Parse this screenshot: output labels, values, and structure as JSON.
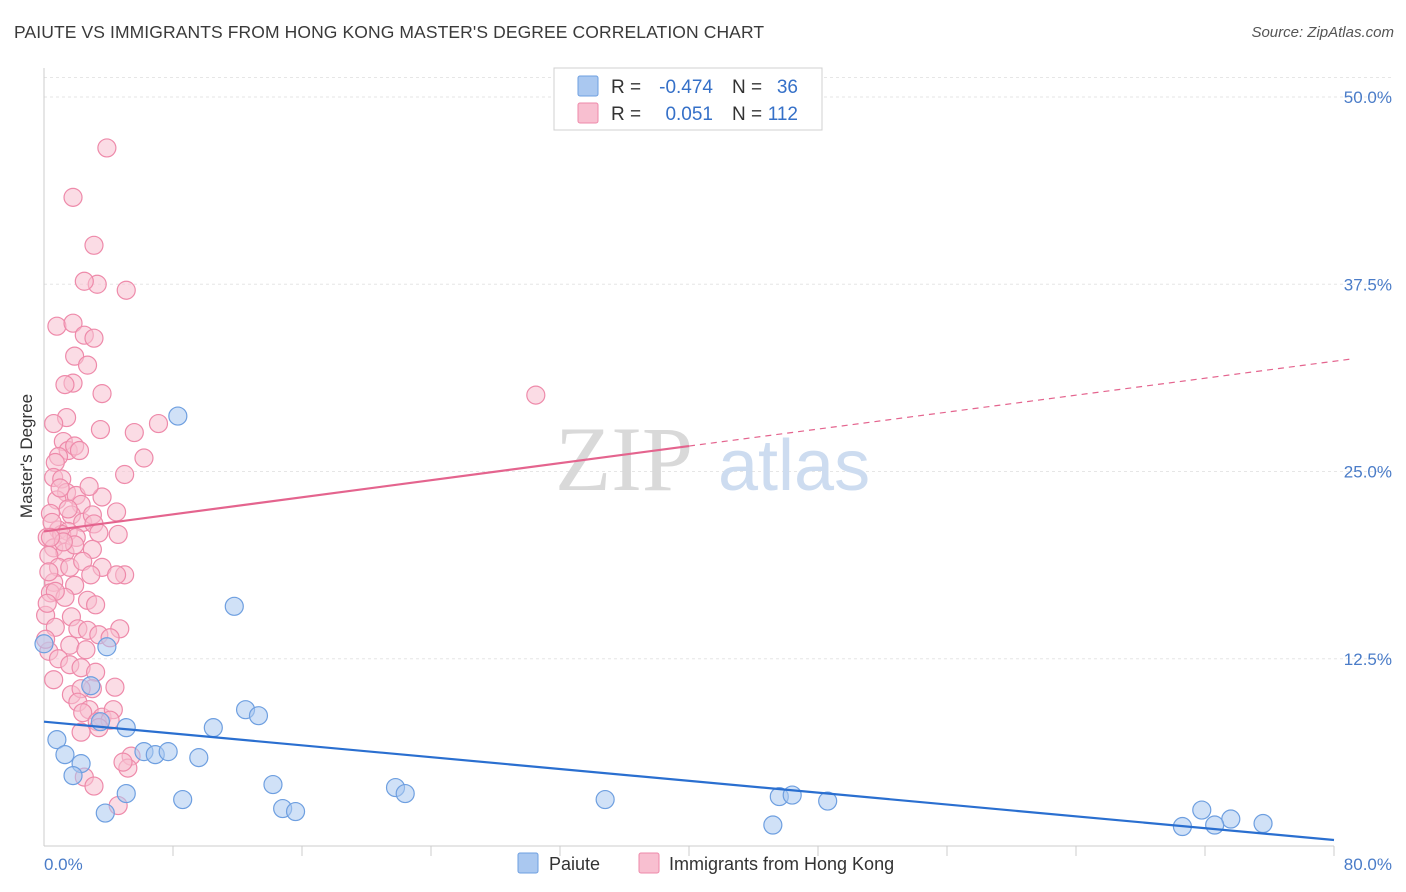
{
  "title": "PAIUTE VS IMMIGRANTS FROM HONG KONG MASTER'S DEGREE CORRELATION CHART",
  "source": "Source: ZipAtlas.com",
  "watermark": {
    "zip": "ZIP",
    "atlas": "atlas"
  },
  "colors": {
    "paiute_fill": "#aac8f0",
    "paiute_stroke": "#6e9fe0",
    "paiute_line": "#2a6fd0",
    "hk_fill": "#f8bfd0",
    "hk_stroke": "#ee8aaa",
    "hk_line": "#e4648e",
    "grid": "#e6e6e6",
    "axis": "#cccccc",
    "tick_text": "#4a7cc8"
  },
  "legend": {
    "rows": [
      {
        "r_label": "R =",
        "r_value": "-0.474",
        "n_label": "N =",
        "n_value": "36"
      },
      {
        "r_label": "R =",
        "r_value": "0.051",
        "n_label": "N =",
        "n_value": "112"
      }
    ]
  },
  "chart_data": {
    "type": "scatter",
    "title": "PAIUTE VS IMMIGRANTS FROM HONG KONG MASTER'S DEGREE CORRELATION CHART",
    "xlabel": "",
    "ylabel": "Master's Degree",
    "xlim": [
      0,
      80
    ],
    "ylim": [
      0,
      52
    ],
    "x_tick_labels": [
      "0.0%",
      "80.0%"
    ],
    "y_ticks": [
      12.5,
      25.0,
      37.5,
      50.0
    ],
    "y_tick_labels": [
      "12.5%",
      "25.0%",
      "37.5%",
      "50.0%"
    ],
    "grid": true,
    "legend_position": "bottom-center",
    "series": [
      {
        "name": "Paiute",
        "R": -0.474,
        "N": 36,
        "trend": {
          "x": [
            0,
            80
          ],
          "y": [
            8.3,
            0.4
          ]
        },
        "points": [
          [
            8.3,
            28.7
          ],
          [
            11.8,
            16.0
          ],
          [
            3.9,
            13.3
          ],
          [
            2.9,
            10.7
          ],
          [
            3.5,
            8.3
          ],
          [
            5.1,
            7.9
          ],
          [
            10.5,
            7.9
          ],
          [
            12.5,
            9.1
          ],
          [
            13.3,
            8.7
          ],
          [
            0.8,
            7.1
          ],
          [
            1.3,
            6.1
          ],
          [
            2.3,
            5.5
          ],
          [
            6.2,
            6.3
          ],
          [
            6.9,
            6.1
          ],
          [
            7.7,
            6.3
          ],
          [
            9.6,
            5.9
          ],
          [
            1.8,
            4.7
          ],
          [
            5.1,
            3.5
          ],
          [
            8.6,
            3.1
          ],
          [
            14.2,
            4.1
          ],
          [
            21.8,
            3.9
          ],
          [
            22.4,
            3.5
          ],
          [
            14.8,
            2.5
          ],
          [
            15.6,
            2.3
          ],
          [
            3.8,
            2.2
          ],
          [
            34.8,
            3.1
          ],
          [
            45.6,
            3.3
          ],
          [
            46.4,
            3.4
          ],
          [
            48.6,
            3.0
          ],
          [
            45.2,
            1.4
          ],
          [
            71.8,
            2.4
          ],
          [
            73.6,
            1.8
          ],
          [
            70.6,
            1.3
          ],
          [
            72.6,
            1.4
          ],
          [
            75.6,
            1.5
          ],
          [
            0.0,
            13.5
          ]
        ]
      },
      {
        "name": "Immigrants from Hong Kong",
        "R": 0.051,
        "N": 112,
        "trend": {
          "x": [
            0,
            40
          ],
          "y": [
            21.0,
            26.7
          ]
        },
        "trend_dashed": {
          "x": [
            40,
            81
          ],
          "y": [
            26.7,
            32.5
          ]
        },
        "points": [
          [
            3.9,
            46.6
          ],
          [
            1.8,
            43.3
          ],
          [
            3.1,
            40.1
          ],
          [
            3.3,
            37.5
          ],
          [
            5.1,
            37.1
          ],
          [
            2.5,
            37.7
          ],
          [
            0.8,
            34.7
          ],
          [
            1.8,
            34.9
          ],
          [
            2.5,
            34.1
          ],
          [
            3.1,
            33.9
          ],
          [
            1.9,
            32.7
          ],
          [
            2.7,
            32.1
          ],
          [
            1.8,
            30.9
          ],
          [
            1.3,
            30.8
          ],
          [
            3.6,
            30.2
          ],
          [
            30.5,
            30.1
          ],
          [
            1.4,
            28.6
          ],
          [
            0.6,
            28.2
          ],
          [
            3.5,
            27.8
          ],
          [
            5.6,
            27.6
          ],
          [
            7.1,
            28.2
          ],
          [
            1.2,
            27.0
          ],
          [
            1.5,
            26.4
          ],
          [
            1.9,
            26.7
          ],
          [
            2.2,
            26.4
          ],
          [
            0.9,
            26.0
          ],
          [
            0.7,
            25.6
          ],
          [
            6.2,
            25.9
          ],
          [
            0.6,
            24.6
          ],
          [
            1.1,
            24.5
          ],
          [
            5.0,
            24.8
          ],
          [
            1.4,
            23.6
          ],
          [
            2.0,
            23.4
          ],
          [
            0.8,
            23.1
          ],
          [
            3.6,
            23.3
          ],
          [
            2.3,
            22.8
          ],
          [
            0.4,
            22.2
          ],
          [
            1.7,
            22.1
          ],
          [
            2.4,
            21.6
          ],
          [
            3.0,
            22.1
          ],
          [
            4.5,
            22.3
          ],
          [
            0.9,
            21.1
          ],
          [
            1.5,
            21.0
          ],
          [
            3.1,
            21.5
          ],
          [
            0.2,
            20.6
          ],
          [
            1.1,
            20.8
          ],
          [
            2.0,
            20.6
          ],
          [
            3.4,
            20.9
          ],
          [
            4.6,
            20.8
          ],
          [
            0.6,
            19.9
          ],
          [
            1.3,
            19.6
          ],
          [
            1.9,
            20.1
          ],
          [
            3.0,
            19.8
          ],
          [
            0.3,
            19.4
          ],
          [
            0.9,
            18.6
          ],
          [
            1.6,
            18.6
          ],
          [
            2.4,
            19.0
          ],
          [
            3.6,
            18.6
          ],
          [
            5.0,
            18.1
          ],
          [
            0.6,
            17.6
          ],
          [
            1.9,
            17.4
          ],
          [
            2.9,
            18.1
          ],
          [
            4.5,
            18.1
          ],
          [
            0.4,
            16.9
          ],
          [
            1.3,
            16.6
          ],
          [
            2.7,
            16.4
          ],
          [
            0.1,
            15.4
          ],
          [
            1.7,
            15.3
          ],
          [
            3.2,
            16.1
          ],
          [
            0.7,
            14.6
          ],
          [
            2.1,
            14.5
          ],
          [
            2.7,
            14.4
          ],
          [
            3.4,
            14.1
          ],
          [
            4.7,
            14.5
          ],
          [
            1.6,
            13.4
          ],
          [
            2.6,
            13.1
          ],
          [
            4.1,
            13.9
          ],
          [
            0.3,
            13.0
          ],
          [
            0.9,
            12.5
          ],
          [
            1.6,
            12.1
          ],
          [
            2.3,
            11.9
          ],
          [
            3.2,
            11.6
          ],
          [
            0.6,
            11.1
          ],
          [
            3.0,
            10.5
          ],
          [
            1.7,
            10.1
          ],
          [
            2.3,
            10.5
          ],
          [
            4.4,
            10.6
          ],
          [
            2.1,
            9.6
          ],
          [
            2.8,
            9.1
          ],
          [
            3.6,
            8.6
          ],
          [
            4.3,
            9.1
          ],
          [
            2.4,
            8.9
          ],
          [
            3.3,
            8.3
          ],
          [
            4.1,
            8.4
          ],
          [
            5.4,
            6.0
          ],
          [
            5.2,
            5.2
          ],
          [
            2.3,
            7.6
          ],
          [
            3.4,
            7.9
          ],
          [
            4.9,
            5.6
          ],
          [
            2.5,
            4.6
          ],
          [
            3.1,
            4.0
          ],
          [
            4.6,
            2.7
          ],
          [
            0.5,
            21.6
          ],
          [
            1.0,
            23.9
          ],
          [
            2.8,
            24.0
          ],
          [
            1.5,
            22.5
          ],
          [
            0.3,
            18.3
          ],
          [
            0.7,
            17.0
          ],
          [
            1.2,
            20.3
          ],
          [
            0.2,
            16.2
          ],
          [
            0.4,
            20.6
          ],
          [
            0.1,
            13.8
          ]
        ]
      }
    ]
  },
  "bottom_legend": {
    "paiute": "Paiute",
    "hk": "Immigrants from Hong Kong"
  }
}
